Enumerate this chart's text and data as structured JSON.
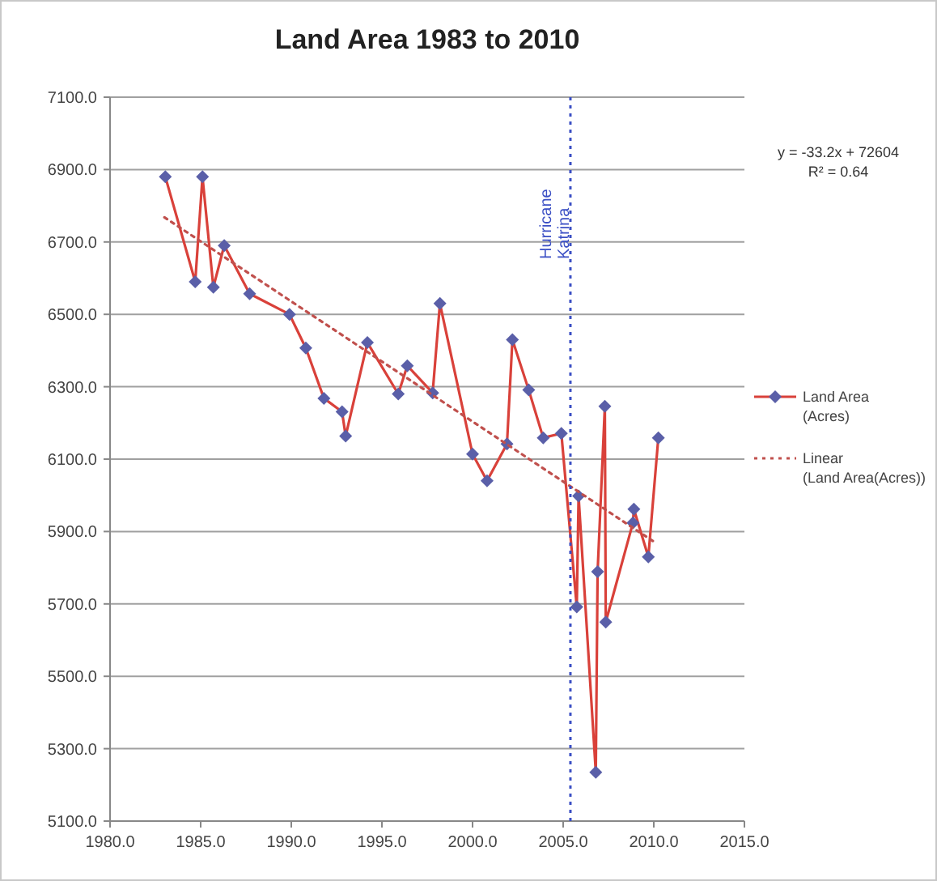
{
  "chart_data": {
    "type": "line",
    "title": "Land Area 1983 to 2010",
    "series": [
      {
        "name": "Land Area (Acres)",
        "color": "#d9413a",
        "marker": "diamond",
        "x": [
          1983.05,
          1984.7,
          1985.1,
          1985.7,
          1986.3,
          1987.7,
          1989.9,
          1990.8,
          1991.8,
          1992.8,
          1993.0,
          1994.2,
          1995.9,
          1996.4,
          1997.8,
          1998.2,
          2000.0,
          2000.8,
          2001.9,
          2002.2,
          2003.1,
          2003.9,
          2004.9,
          2005.75,
          2005.85,
          2006.8,
          2006.9,
          2007.3,
          2007.35,
          2008.85,
          2008.9,
          2009.7,
          2010.25
        ],
        "values": [
          6880,
          6590,
          6880,
          6575,
          6690,
          6557,
          6500,
          6407,
          6268,
          6231,
          6164,
          6422,
          6280,
          6358,
          6283,
          6530,
          6114,
          6040,
          6142,
          6430,
          6291,
          6159,
          6171,
          5692,
          5998,
          5235,
          5789,
          6246,
          5650,
          5924,
          5962,
          5830,
          6159
        ]
      },
      {
        "name": "Linear (Land Area(Acres))",
        "type": "line",
        "color": "#c0504d",
        "marker": "none",
        "line_style": "dotted",
        "x": [
          1983,
          2010
        ],
        "values": [
          6768,
          5872
        ]
      }
    ],
    "xlim": [
      1980,
      2015
    ],
    "xticks": [
      {
        "value": 1980,
        "label": "1980.0"
      },
      {
        "value": 1985,
        "label": "1985.0"
      },
      {
        "value": 1990,
        "label": "1990.0"
      },
      {
        "value": 1995,
        "label": "1995.0"
      },
      {
        "value": 2000,
        "label": "2000.0"
      },
      {
        "value": 2005,
        "label": "2005.0"
      },
      {
        "value": 2010,
        "label": "2010.0"
      },
      {
        "value": 2015,
        "label": "2015.0"
      }
    ],
    "ylim": [
      5100,
      7100
    ],
    "yticks": [
      {
        "value": 5100,
        "label": "5100.0"
      },
      {
        "value": 5300,
        "label": "5300.0"
      },
      {
        "value": 5500,
        "label": "5500.0"
      },
      {
        "value": 5700,
        "label": "5700.0"
      },
      {
        "value": 5900,
        "label": "5900.0"
      },
      {
        "value": 6100,
        "label": "6100.0"
      },
      {
        "value": 6300,
        "label": "6300.0"
      },
      {
        "value": 6500,
        "label": "6500.0"
      },
      {
        "value": 6700,
        "label": "6700.0"
      },
      {
        "value": 6900,
        "label": "6900.0"
      },
      {
        "value": 7100,
        "label": "7100.0"
      }
    ],
    "ref_lines": [
      {
        "axis": "x",
        "value": 2005.4,
        "label": "Hurricane Katrina",
        "color": "#3b4fc4",
        "line_style": "dotted"
      }
    ],
    "annotations": [
      "y = -33.2x + 72604",
      "R² = 0.64"
    ],
    "grid": "y",
    "legend": "right"
  }
}
